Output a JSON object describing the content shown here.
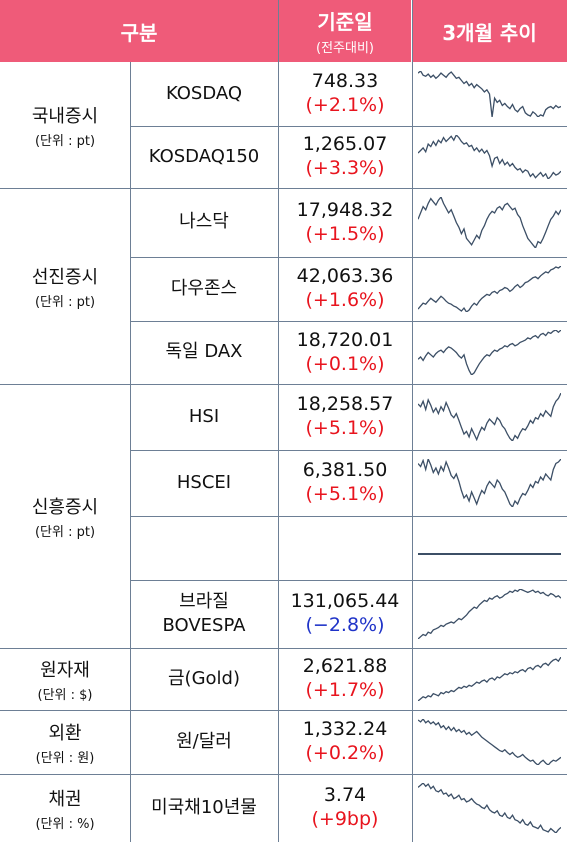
{
  "header": {
    "category": "구분",
    "base_date": "기준일",
    "base_date_sub": "(전주대비)",
    "trend": "3개월 추이"
  },
  "groups": [
    {
      "title": "국내증시",
      "unit": "(단위 : pt)"
    },
    {
      "title": "선진증시",
      "unit": "(단위 : pt)"
    },
    {
      "title": "신흥증시",
      "unit": "(단위 : pt)"
    },
    {
      "title": "원자재",
      "unit": "(단위 : $)"
    },
    {
      "title": "외환",
      "unit": "(단위 : 원)"
    },
    {
      "title": "채권",
      "unit": "(단위 : %)"
    }
  ],
  "rows": [
    {
      "name": "KOSDAQ",
      "value": "748.33",
      "change": "(+2.1%)",
      "dir": "up",
      "spark": [
        62,
        64,
        60,
        59,
        61,
        58,
        60,
        57,
        59,
        62,
        60,
        58,
        61,
        63,
        60,
        57,
        58,
        55,
        52,
        54,
        50,
        52,
        48,
        51,
        49,
        47,
        44,
        46,
        42,
        20,
        38,
        34,
        36,
        31,
        33,
        30,
        28,
        32,
        27,
        25,
        28,
        30,
        24,
        22,
        21,
        25,
        23,
        20,
        22,
        21,
        27,
        29,
        30,
        28,
        31,
        29,
        30
      ]
    },
    {
      "name": "KOSDAQ150",
      "value": "1,265.07",
      "change": "(+3.3%)",
      "dir": "up",
      "spark": [
        48,
        50,
        52,
        49,
        55,
        53,
        57,
        54,
        58,
        56,
        60,
        57,
        59,
        61,
        58,
        62,
        60,
        57,
        55,
        56,
        53,
        54,
        50,
        52,
        49,
        51,
        48,
        50,
        46,
        38,
        44,
        45,
        40,
        43,
        39,
        41,
        38,
        40,
        37,
        35,
        36,
        33,
        35,
        34,
        30,
        32,
        29,
        31,
        33,
        30,
        32,
        28,
        30,
        33,
        31,
        32,
        34
      ]
    },
    {
      "name": "나스닥",
      "value": "17,948.32",
      "change": "(+1.5%)",
      "dir": "up",
      "spark": [
        40,
        44,
        48,
        46,
        50,
        53,
        51,
        49,
        52,
        54,
        50,
        47,
        44,
        46,
        42,
        38,
        35,
        31,
        34,
        28,
        26,
        24,
        27,
        30,
        28,
        33,
        36,
        40,
        43,
        45,
        44,
        47,
        48,
        46,
        49,
        50,
        48,
        46,
        47,
        43,
        41,
        36,
        32,
        28,
        26,
        24,
        22,
        26,
        25,
        28,
        32,
        36,
        40,
        42,
        45,
        43,
        46
      ]
    },
    {
      "name": "다우존스",
      "value": "42,063.36",
      "change": "(+1.6%)",
      "dir": "up",
      "spark": [
        22,
        25,
        28,
        27,
        30,
        33,
        31,
        29,
        32,
        35,
        33,
        30,
        28,
        27,
        25,
        24,
        22,
        20,
        23,
        19,
        21,
        25,
        28,
        26,
        30,
        33,
        35,
        37,
        36,
        39,
        40,
        38,
        41,
        42,
        44,
        43,
        40,
        42,
        45,
        47,
        44,
        46,
        49,
        50,
        52,
        54,
        55,
        53,
        56,
        58,
        60,
        59,
        62,
        63,
        65,
        64,
        66
      ]
    },
    {
      "name": "독일 DAX",
      "value": "18,720.01",
      "change": "(+0.1%)",
      "dir": "up",
      "spark": [
        34,
        36,
        33,
        37,
        40,
        38,
        36,
        39,
        41,
        42,
        40,
        43,
        45,
        44,
        42,
        40,
        37,
        35,
        38,
        30,
        24,
        20,
        22,
        26,
        30,
        33,
        36,
        38,
        37,
        40,
        42,
        41,
        43,
        44,
        46,
        45,
        47,
        48,
        46,
        47,
        49,
        50,
        51,
        53,
        52,
        54,
        55,
        53,
        56,
        57,
        55,
        58,
        57,
        59,
        60,
        58,
        60
      ]
    },
    {
      "name": "HSI",
      "value": "18,258.57",
      "change": "(+5.1%)",
      "dir": "up",
      "spark": [
        52,
        50,
        54,
        48,
        55,
        51,
        46,
        49,
        45,
        50,
        47,
        53,
        49,
        44,
        42,
        45,
        40,
        35,
        30,
        32,
        28,
        34,
        30,
        26,
        31,
        35,
        33,
        38,
        41,
        39,
        37,
        42,
        40,
        36,
        34,
        30,
        27,
        25,
        29,
        27,
        31,
        34,
        33,
        36,
        40,
        38,
        42,
        41,
        45,
        43,
        47,
        45,
        43,
        50,
        54,
        56,
        60
      ]
    },
    {
      "name": "HSCEI",
      "value": "6,381.50",
      "change": "(+5.1%)",
      "dir": "up",
      "spark": [
        55,
        53,
        57,
        51,
        58,
        54,
        49,
        52,
        48,
        53,
        50,
        56,
        52,
        47,
        45,
        48,
        43,
        37,
        32,
        34,
        30,
        36,
        32,
        28,
        33,
        37,
        35,
        40,
        43,
        41,
        39,
        44,
        42,
        38,
        36,
        32,
        28,
        26,
        30,
        28,
        32,
        35,
        34,
        37,
        41,
        39,
        43,
        42,
        46,
        44,
        48,
        46,
        44,
        51,
        55,
        56,
        58
      ]
    },
    {
      "name": "",
      "value": "",
      "change": "",
      "dir": "none",
      "spark": [
        30,
        30
      ]
    },
    {
      "name": "브라질\nBOVESPA",
      "value": "131,065.44",
      "change": "(−2.8%)",
      "dir": "down",
      "spark": [
        18,
        20,
        22,
        21,
        24,
        23,
        26,
        27,
        28,
        30,
        29,
        31,
        32,
        33,
        32,
        34,
        36,
        35,
        37,
        39,
        42,
        44,
        46,
        45,
        48,
        50,
        52,
        51,
        54,
        53,
        55,
        56,
        54,
        55,
        57,
        58,
        60,
        59,
        61,
        60,
        62,
        61,
        60,
        59,
        60,
        61,
        59,
        60,
        58,
        59,
        57,
        56,
        58,
        57,
        55,
        56,
        54
      ]
    },
    {
      "name": "금(Gold)",
      "value": "2,621.88",
      "change": "(+1.7%)",
      "dir": "up",
      "spark": [
        18,
        20,
        22,
        21,
        23,
        22,
        25,
        24,
        23,
        26,
        25,
        27,
        26,
        28,
        27,
        29,
        31,
        30,
        32,
        31,
        33,
        32,
        34,
        36,
        35,
        37,
        38,
        36,
        39,
        40,
        38,
        41,
        40,
        42,
        44,
        43,
        45,
        44,
        46,
        45,
        47,
        48,
        46,
        49,
        50,
        48,
        51,
        52,
        50,
        53,
        54,
        52,
        55,
        57,
        58,
        56,
        60
      ]
    },
    {
      "name": "원/달러",
      "value": "1,332.24",
      "change": "(+0.2%)",
      "dir": "up",
      "spark": [
        60,
        58,
        61,
        57,
        59,
        56,
        58,
        55,
        57,
        52,
        54,
        50,
        53,
        49,
        52,
        48,
        50,
        47,
        49,
        45,
        47,
        44,
        46,
        48,
        45,
        42,
        40,
        38,
        36,
        34,
        32,
        30,
        28,
        27,
        29,
        26,
        24,
        26,
        23,
        21,
        22,
        24,
        21,
        19,
        17,
        18,
        15,
        13,
        16,
        18,
        15,
        13,
        16,
        18,
        17,
        19,
        21
      ]
    },
    {
      "name": "미국채10년물",
      "value": "3.74",
      "change": "(+9bp)",
      "dir": "up",
      "spark": [
        56,
        58,
        60,
        57,
        59,
        55,
        57,
        53,
        52,
        54,
        50,
        51,
        48,
        50,
        46,
        47,
        49,
        45,
        46,
        43,
        44,
        46,
        43,
        41,
        40,
        38,
        37,
        40,
        36,
        34,
        33,
        35,
        31,
        30,
        33,
        29,
        28,
        31,
        27,
        26,
        24,
        27,
        23,
        22,
        25,
        21,
        20,
        19,
        22,
        18,
        17,
        16,
        19,
        17,
        15,
        18,
        20
      ]
    }
  ],
  "colors": {
    "header_bg": "#ef5b79",
    "up": "#e8141e",
    "down": "#1f33c8",
    "line": "#6d7f95",
    "spark": "#3c4f66"
  }
}
